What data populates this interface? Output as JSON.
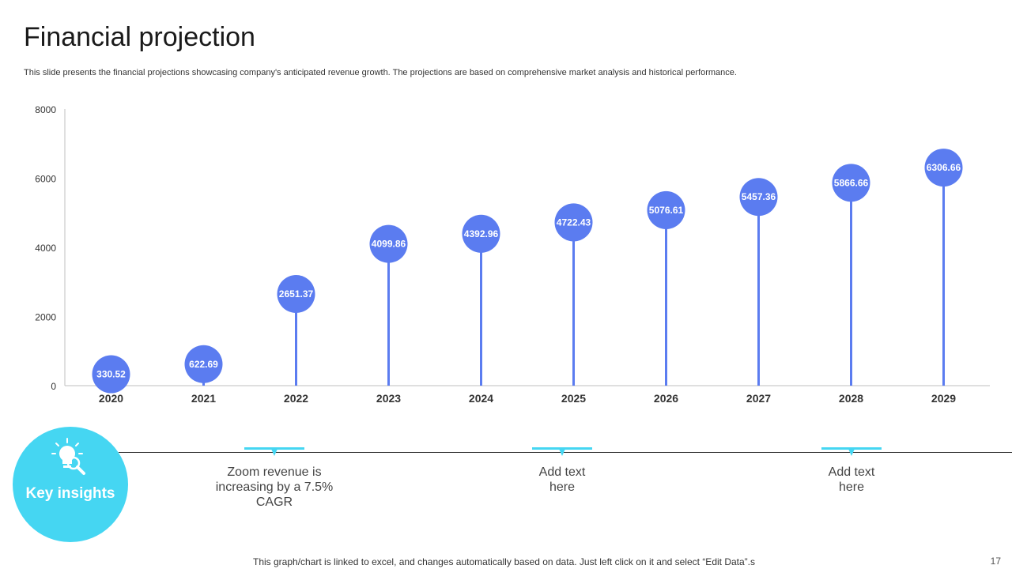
{
  "slide": {
    "title": "Financial projection",
    "subtitle": "This slide presents the financial projections showcasing company's anticipated revenue growth. The projections are based on comprehensive market analysis and historical performance.",
    "footer": "This graph/chart is linked to excel, and changes automatically based on data. Just left click on it and select “Edit Data”.s",
    "page_number": "17"
  },
  "chart_data": {
    "type": "lollipop",
    "categories": [
      "2020",
      "2021",
      "2022",
      "2023",
      "2024",
      "2025",
      "2026",
      "2027",
      "2028",
      "2029"
    ],
    "values": [
      330.52,
      622.69,
      2651.37,
      4099.86,
      4392.96,
      4722.43,
      5076.61,
      5457.36,
      5866.66,
      6306.66
    ],
    "labels": [
      "330.52",
      "622.69",
      "2651.37",
      "4099.86",
      "4392.96",
      "4722.43",
      "5076.61",
      "5457.36",
      "5866.66",
      "6306.66"
    ],
    "ylim": [
      0,
      8000
    ],
    "yticks": [
      0,
      2000,
      4000,
      6000,
      8000
    ],
    "title": "",
    "xlabel": "",
    "ylabel": "",
    "colors": {
      "marker": "#5b7cf0",
      "stem": "#5b7cf0",
      "axis": "#bfbfbf"
    }
  },
  "insights": {
    "heading": "Key insights",
    "items": [
      {
        "text": "Zoom revenue is increasing by a 7.5% CAGR"
      },
      {
        "text": "Add text here"
      },
      {
        "text": "Add text here"
      }
    ],
    "accent": "#45d6f2"
  }
}
